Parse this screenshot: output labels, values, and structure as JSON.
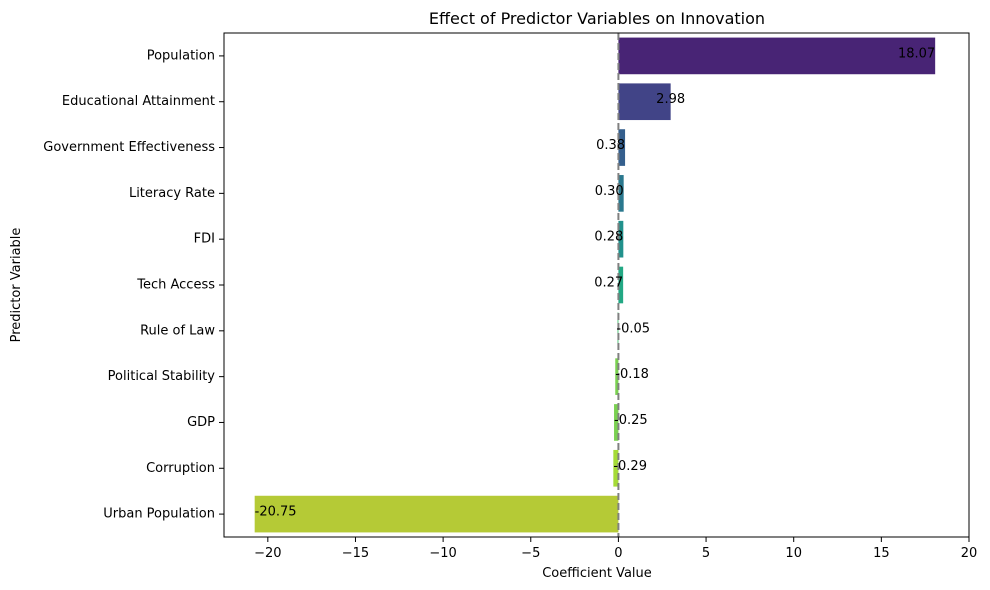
{
  "chart_data": {
    "type": "bar",
    "orientation": "horizontal",
    "title": "Effect of Predictor Variables on Innovation",
    "xlabel": "Coefficient Value",
    "ylabel": "Predictor Variable",
    "xlim": [
      -22.5,
      20
    ],
    "xticks": [
      -20,
      -15,
      -10,
      -5,
      0,
      5,
      10,
      15,
      20
    ],
    "xtick_labels": [
      "−20",
      "−15",
      "−10",
      "−5",
      "0",
      "5",
      "10",
      "15",
      "20"
    ],
    "reference_line": {
      "x": 0,
      "style": "dashed",
      "color": "#808080"
    },
    "grid": false,
    "categories": [
      "Population",
      "Educational Attainment",
      "Government Effectiveness",
      "Literacy Rate",
      "FDI",
      "Tech Access",
      "Rule of Law",
      "Political Stability",
      "GDP",
      "Corruption",
      "Urban Population"
    ],
    "values": [
      18.07,
      2.98,
      0.38,
      0.3,
      0.28,
      0.27,
      -0.05,
      -0.18,
      -0.25,
      -0.29,
      -20.75
    ],
    "value_labels": [
      "18.07",
      "2.98",
      "0.38",
      "0.30",
      "0.28",
      "0.27",
      "-0.05",
      "-0.18",
      "-0.25",
      "-0.29",
      "-20.75"
    ],
    "colors": [
      "#482475",
      "#414487",
      "#355f8d",
      "#2a788e",
      "#21918c",
      "#22a884",
      "#44bf70",
      "#7ad151",
      "#7ad151",
      "#a5db36",
      "#b5ca36"
    ]
  }
}
